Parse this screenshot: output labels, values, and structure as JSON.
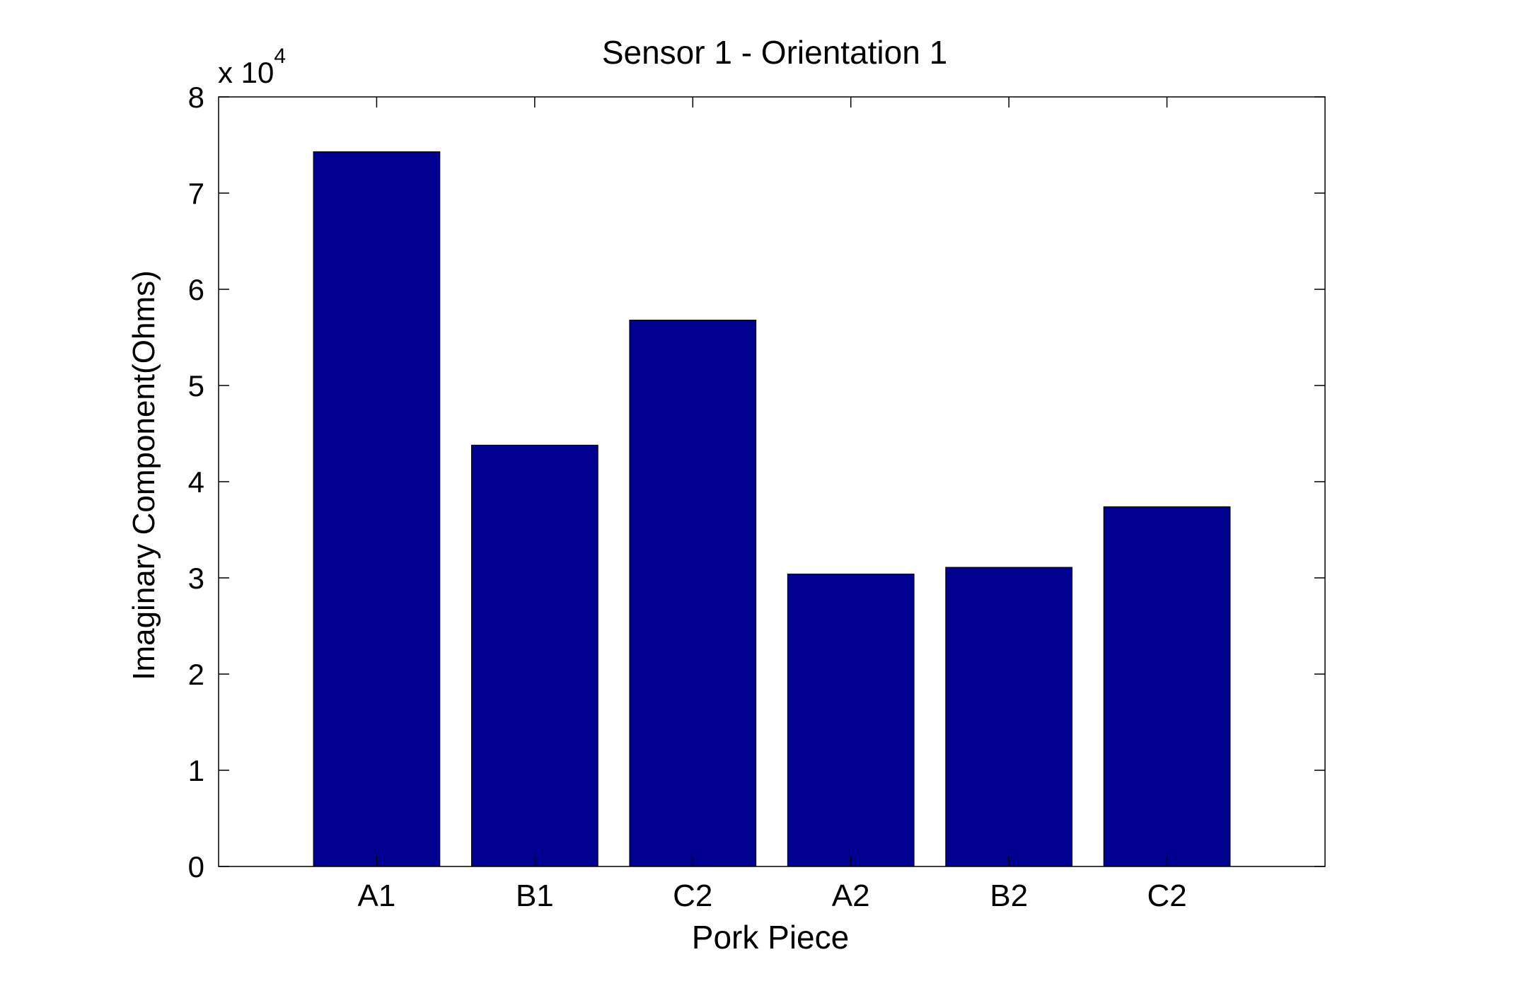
{
  "chart_data": {
    "type": "bar",
    "title": "Sensor 1 - Orientation 1",
    "xlabel": "Pork Piece",
    "ylabel": "Imaginary Component(Ohms)",
    "exponent_base": "x 10",
    "exponent_power": "4",
    "categories": [
      "A1",
      "B1",
      "C2",
      "A2",
      "B2",
      "C2"
    ],
    "values": [
      74300,
      43800,
      56800,
      30400,
      31100,
      37400
    ],
    "ylim": [
      0,
      80000
    ],
    "yticks": [
      0,
      10000,
      20000,
      30000,
      40000,
      50000,
      60000,
      70000,
      80000
    ],
    "ytick_labels": [
      "0",
      "1",
      "2",
      "3",
      "4",
      "5",
      "6",
      "7",
      "8"
    ],
    "xlim": [
      0,
      7
    ],
    "grid": false,
    "colors": {
      "bar": "#000090",
      "bar_edge": "#000000",
      "axis": "#000000",
      "background": "#ffffff"
    }
  }
}
